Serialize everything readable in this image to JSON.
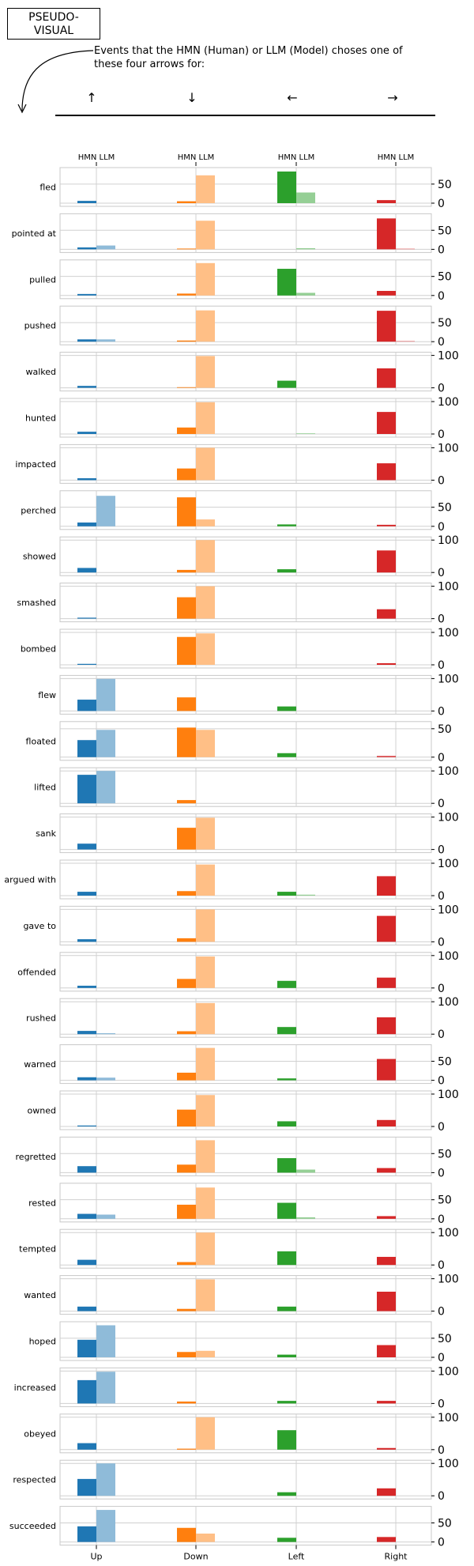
{
  "header": {
    "title_line1": "PSEUDO-",
    "title_line2": "VISUAL",
    "description": "Events that the HMN (Human) or LLM (Model) choses one of these four arrows for:",
    "arrows": [
      "↑",
      "↓",
      "←",
      "→"
    ]
  },
  "colors": {
    "up": [
      "#1f77b4",
      "#8fbbd9"
    ],
    "down": [
      "#ff7f0e",
      "#ffbf86"
    ],
    "left": [
      "#2ca02c",
      "#95cf95"
    ],
    "right": [
      "#d62728",
      "#ea9293"
    ]
  },
  "chart_data": {
    "type": "bar",
    "categories": [
      "Up",
      "Down",
      "Left",
      "Right"
    ],
    "series_labels": [
      "HMN",
      "LLM"
    ],
    "rows": [
      {
        "label": "fled",
        "ymax": 85,
        "ticks": [
          0,
          50
        ],
        "hmn": [
          6,
          5,
          83,
          8
        ],
        "llm": [
          0,
          73,
          28,
          0
        ]
      },
      {
        "label": "pointed at",
        "ymax": 85,
        "ticks": [
          0,
          50
        ],
        "hmn": [
          5,
          2,
          0,
          81
        ],
        "llm": [
          10,
          75,
          3,
          2
        ]
      },
      {
        "label": "pulled",
        "ymax": 85,
        "ticks": [
          0,
          50
        ],
        "hmn": [
          4,
          5,
          70,
          12
        ],
        "llm": [
          0,
          85,
          7,
          0
        ]
      },
      {
        "label": "pushed",
        "ymax": 85,
        "ticks": [
          0,
          50
        ],
        "hmn": [
          6,
          3,
          0,
          81
        ],
        "llm": [
          6,
          82,
          0,
          2
        ]
      },
      {
        "label": "walked",
        "ymax": 100,
        "ticks": [
          0,
          100
        ],
        "hmn": [
          6,
          2,
          22,
          60
        ],
        "llm": [
          0,
          98,
          0,
          0
        ]
      },
      {
        "label": "hunted",
        "ymax": 100,
        "ticks": [
          0,
          100
        ],
        "hmn": [
          7,
          20,
          0,
          68
        ],
        "llm": [
          0,
          98,
          2,
          0
        ]
      },
      {
        "label": "impacted",
        "ymax": 100,
        "ticks": [
          0,
          100
        ],
        "hmn": [
          6,
          36,
          0,
          52
        ],
        "llm": [
          0,
          100,
          0,
          0
        ]
      },
      {
        "label": "perched",
        "ymax": 85,
        "ticks": [
          0,
          50
        ],
        "hmn": [
          10,
          76,
          5,
          4
        ],
        "llm": [
          80,
          18,
          0,
          0
        ]
      },
      {
        "label": "showed",
        "ymax": 100,
        "ticks": [
          0,
          100
        ],
        "hmn": [
          14,
          8,
          10,
          68
        ],
        "llm": [
          0,
          100,
          0,
          0
        ]
      },
      {
        "label": "smashed",
        "ymax": 100,
        "ticks": [
          0,
          100
        ],
        "hmn": [
          3,
          66,
          0,
          29
        ],
        "llm": [
          0,
          100,
          0,
          0
        ]
      },
      {
        "label": "bombed",
        "ymax": 100,
        "ticks": [
          0,
          100
        ],
        "hmn": [
          3,
          86,
          0,
          5
        ],
        "llm": [
          0,
          97,
          0,
          0
        ]
      },
      {
        "label": "flew",
        "ymax": 100,
        "ticks": [
          0,
          100
        ],
        "hmn": [
          35,
          42,
          14,
          0
        ],
        "llm": [
          99,
          0,
          0,
          0
        ]
      },
      {
        "label": "floated",
        "ymax": 57,
        "ticks": [
          0,
          50
        ],
        "hmn": [
          30,
          52,
          7,
          2
        ],
        "llm": [
          48,
          48,
          0,
          0
        ]
      },
      {
        "label": "lifted",
        "ymax": 100,
        "ticks": [
          0,
          100
        ],
        "hmn": [
          88,
          10,
          0,
          0
        ],
        "llm": [
          100,
          0,
          0,
          0
        ]
      },
      {
        "label": "sank",
        "ymax": 100,
        "ticks": [
          0,
          100
        ],
        "hmn": [
          18,
          67,
          0,
          0
        ],
        "llm": [
          0,
          98,
          0,
          0
        ]
      },
      {
        "label": "argued with",
        "ymax": 100,
        "ticks": [
          0,
          100
        ],
        "hmn": [
          12,
          14,
          12,
          60
        ],
        "llm": [
          0,
          96,
          3,
          0
        ]
      },
      {
        "label": "gave to",
        "ymax": 100,
        "ticks": [
          0,
          100
        ],
        "hmn": [
          8,
          11,
          0,
          80
        ],
        "llm": [
          0,
          100,
          0,
          0
        ]
      },
      {
        "label": "offended",
        "ymax": 100,
        "ticks": [
          0,
          100
        ],
        "hmn": [
          7,
          28,
          22,
          32
        ],
        "llm": [
          0,
          97,
          0,
          0
        ]
      },
      {
        "label": "rushed",
        "ymax": 100,
        "ticks": [
          0,
          100
        ],
        "hmn": [
          10,
          9,
          22,
          52
        ],
        "llm": [
          3,
          96,
          0,
          0
        ]
      },
      {
        "label": "warned",
        "ymax": 85,
        "ticks": [
          0,
          50
        ],
        "hmn": [
          8,
          20,
          5,
          56
        ],
        "llm": [
          7,
          85,
          0,
          0
        ]
      },
      {
        "label": "owned",
        "ymax": 100,
        "ticks": [
          0,
          100
        ],
        "hmn": [
          3,
          52,
          16,
          20
        ],
        "llm": [
          0,
          97,
          0,
          0
        ]
      },
      {
        "label": "regretted",
        "ymax": 85,
        "ticks": [
          0,
          50
        ],
        "hmn": [
          17,
          21,
          38,
          12
        ],
        "llm": [
          0,
          85,
          8,
          0
        ]
      },
      {
        "label": "rested",
        "ymax": 85,
        "ticks": [
          0,
          50
        ],
        "hmn": [
          13,
          37,
          42,
          7
        ],
        "llm": [
          11,
          82,
          4,
          0
        ]
      },
      {
        "label": "tempted",
        "ymax": 100,
        "ticks": [
          0,
          100
        ],
        "hmn": [
          16,
          9,
          42,
          25
        ],
        "llm": [
          0,
          100,
          0,
          0
        ]
      },
      {
        "label": "wanted",
        "ymax": 100,
        "ticks": [
          0,
          100
        ],
        "hmn": [
          14,
          7,
          14,
          60
        ],
        "llm": [
          0,
          98,
          0,
          0
        ]
      },
      {
        "label": "hoped",
        "ymax": 85,
        "ticks": [
          0,
          50
        ],
        "hmn": [
          46,
          14,
          7,
          32
        ],
        "llm": [
          84,
          17,
          0,
          0
        ]
      },
      {
        "label": "increased",
        "ymax": 100,
        "ticks": [
          0,
          100
        ],
        "hmn": [
          72,
          6,
          8,
          8
        ],
        "llm": [
          98,
          0,
          0,
          0
        ]
      },
      {
        "label": "obeyed",
        "ymax": 100,
        "ticks": [
          0,
          100
        ],
        "hmn": [
          20,
          3,
          60,
          5
        ],
        "llm": [
          0,
          100,
          0,
          0
        ]
      },
      {
        "label": "respected",
        "ymax": 100,
        "ticks": [
          0,
          100
        ],
        "hmn": [
          52,
          0,
          11,
          23
        ],
        "llm": [
          100,
          0,
          0,
          0
        ]
      },
      {
        "label": "succeeded",
        "ymax": 85,
        "ticks": [
          0,
          50
        ],
        "hmn": [
          41,
          37,
          11,
          13
        ],
        "llm": [
          84,
          22,
          0,
          0
        ]
      }
    ]
  }
}
